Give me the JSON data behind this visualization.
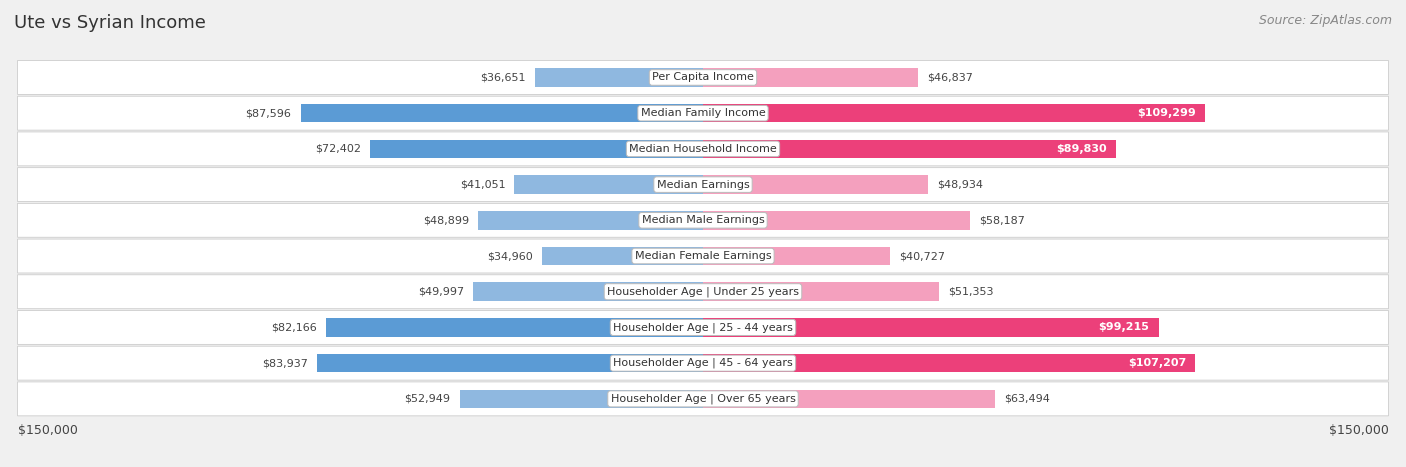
{
  "title": "Ute vs Syrian Income",
  "source": "Source: ZipAtlas.com",
  "categories": [
    "Per Capita Income",
    "Median Family Income",
    "Median Household Income",
    "Median Earnings",
    "Median Male Earnings",
    "Median Female Earnings",
    "Householder Age | Under 25 years",
    "Householder Age | 25 - 44 years",
    "Householder Age | 45 - 64 years",
    "Householder Age | Over 65 years"
  ],
  "ute_values": [
    36651,
    87596,
    72402,
    41051,
    48899,
    34960,
    49997,
    82166,
    83937,
    52949
  ],
  "syrian_values": [
    46837,
    109299,
    89830,
    48934,
    58187,
    40727,
    51353,
    99215,
    107207,
    63494
  ],
  "ute_labels": [
    "$36,651",
    "$87,596",
    "$72,402",
    "$41,051",
    "$48,899",
    "$34,960",
    "$49,997",
    "$82,166",
    "$83,937",
    "$52,949"
  ],
  "syrian_labels": [
    "$46,837",
    "$109,299",
    "$89,830",
    "$48,934",
    "$58,187",
    "$40,727",
    "$51,353",
    "$99,215",
    "$107,207",
    "$63,494"
  ],
  "ute_color": "#8fb8e0",
  "syrian_color": "#f4a0be",
  "ute_color_strong": "#5b9bd5",
  "syrian_color_strong": "#ec407a",
  "max_val": 150000,
  "bg_color": "#f0f0f0",
  "row_bg": "#ffffff",
  "row_bg_alt": "#f7f7f7",
  "title_fontsize": 13,
  "source_fontsize": 9,
  "label_fontsize": 8,
  "cat_fontsize": 8,
  "axis_label_fontsize": 9,
  "syrian_inside_threshold": 80000,
  "ute_inside_threshold": 70000
}
